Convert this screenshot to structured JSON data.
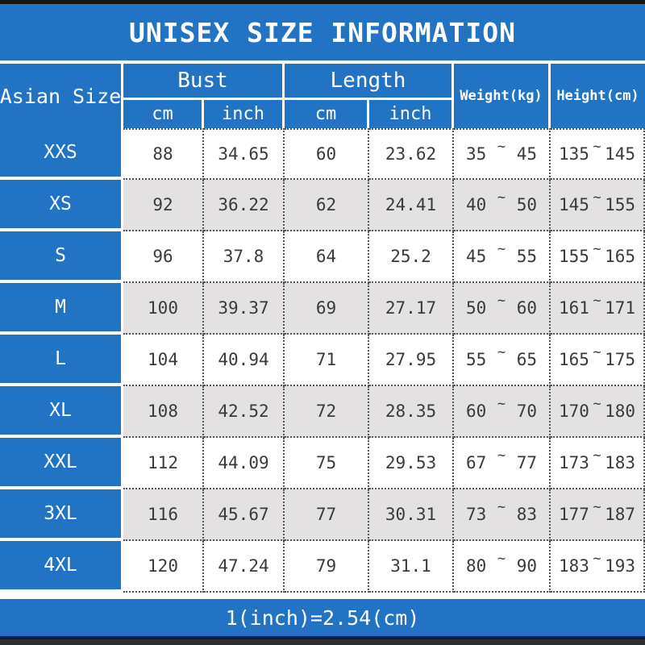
{
  "title": "UNISEX SIZE INFORMATION",
  "footer_note": "1(inch)=2.54(cm)",
  "colors": {
    "banner_blue": "#2273c4",
    "alt_row_gray": "#e3e1e2",
    "data_text": "#3a3a3a",
    "header_text": "#ffffff"
  },
  "table": {
    "size_col_header": "Asian Size",
    "range_separator": "~",
    "groups": [
      {
        "label": "Bust",
        "sub": [
          "cm",
          "inch"
        ]
      },
      {
        "label": "Length",
        "sub": [
          "cm",
          "inch"
        ]
      }
    ],
    "weight_header": "Weight(kg)",
    "height_header": "Height(cm)",
    "rows": [
      {
        "size": "XXS",
        "bust_cm": "88",
        "bust_in": "34.65",
        "len_cm": "60",
        "len_in": "23.62",
        "w_min": "35",
        "w_max": "45",
        "h_min": "135",
        "h_max": "145"
      },
      {
        "size": "XS",
        "bust_cm": "92",
        "bust_in": "36.22",
        "len_cm": "62",
        "len_in": "24.41",
        "w_min": "40",
        "w_max": "50",
        "h_min": "145",
        "h_max": "155"
      },
      {
        "size": "S",
        "bust_cm": "96",
        "bust_in": "37.8",
        "len_cm": "64",
        "len_in": "25.2",
        "w_min": "45",
        "w_max": "55",
        "h_min": "155",
        "h_max": "165"
      },
      {
        "size": "M",
        "bust_cm": "100",
        "bust_in": "39.37",
        "len_cm": "69",
        "len_in": "27.17",
        "w_min": "50",
        "w_max": "60",
        "h_min": "161",
        "h_max": "171"
      },
      {
        "size": "L",
        "bust_cm": "104",
        "bust_in": "40.94",
        "len_cm": "71",
        "len_in": "27.95",
        "w_min": "55",
        "w_max": "65",
        "h_min": "165",
        "h_max": "175"
      },
      {
        "size": "XL",
        "bust_cm": "108",
        "bust_in": "42.52",
        "len_cm": "72",
        "len_in": "28.35",
        "w_min": "60",
        "w_max": "70",
        "h_min": "170",
        "h_max": "180"
      },
      {
        "size": "XXL",
        "bust_cm": "112",
        "bust_in": "44.09",
        "len_cm": "75",
        "len_in": "29.53",
        "w_min": "67",
        "w_max": "77",
        "h_min": "173",
        "h_max": "183"
      },
      {
        "size": "3XL",
        "bust_cm": "116",
        "bust_in": "45.67",
        "len_cm": "77",
        "len_in": "30.31",
        "w_min": "73",
        "w_max": "83",
        "h_min": "177",
        "h_max": "187"
      },
      {
        "size": "4XL",
        "bust_cm": "120",
        "bust_in": "47.24",
        "len_cm": "79",
        "len_in": "31.1",
        "w_min": "80",
        "w_max": "90",
        "h_min": "183",
        "h_max": "193"
      }
    ]
  },
  "chart_data": {
    "type": "table",
    "title": "UNISEX SIZE INFORMATION",
    "columns": [
      "Asian Size",
      "Bust cm",
      "Bust inch",
      "Length cm",
      "Length inch",
      "Weight(kg)",
      "Height(cm)"
    ],
    "rows": [
      [
        "XXS",
        88,
        34.65,
        60,
        23.62,
        "35~45",
        "135~145"
      ],
      [
        "XS",
        92,
        36.22,
        62,
        24.41,
        "40~50",
        "145~155"
      ],
      [
        "S",
        96,
        37.8,
        64,
        25.2,
        "45~55",
        "155~165"
      ],
      [
        "M",
        100,
        39.37,
        69,
        27.17,
        "50~60",
        "161~171"
      ],
      [
        "L",
        104,
        40.94,
        71,
        27.95,
        "55~65",
        "165~175"
      ],
      [
        "XL",
        108,
        42.52,
        72,
        28.35,
        "60~70",
        "170~180"
      ],
      [
        "XXL",
        112,
        44.09,
        75,
        29.53,
        "67~77",
        "173~183"
      ],
      [
        "3XL",
        116,
        45.67,
        77,
        30.31,
        "73~83",
        "177~187"
      ],
      [
        "4XL",
        120,
        47.24,
        79,
        31.1,
        "80~90",
        "183~193"
      ]
    ],
    "note": "1(inch)=2.54(cm)"
  }
}
